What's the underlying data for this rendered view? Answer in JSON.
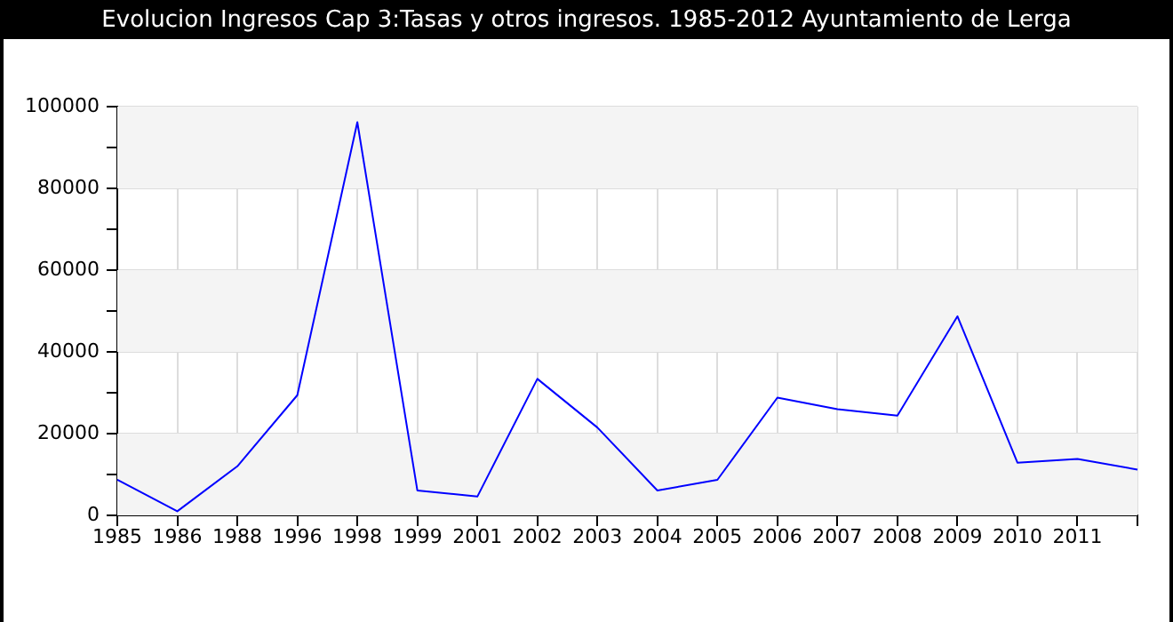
{
  "chart_data": {
    "type": "line",
    "title": "Evolucion Ingresos Cap 3:Tasas y otros ingresos. 1985-2012 Ayuntamiento de Lerga",
    "categories": [
      "1985",
      "1986",
      "1988",
      "1996",
      "1998",
      "1999",
      "2001",
      "2002",
      "2003",
      "2004",
      "2005",
      "2006",
      "2007",
      "2008",
      "2009",
      "2010",
      "2011",
      null
    ],
    "series": [
      {
        "color": "#0000ff",
        "values": [
          8700,
          1000,
          12000,
          29400,
          96200,
          6100,
          4600,
          33400,
          21500,
          6100,
          8700,
          28800,
          26000,
          24400,
          48700,
          12900,
          13800,
          11200
        ]
      }
    ],
    "ylim": [
      0,
      100000
    ],
    "yticks": [
      0,
      {
        "value": 10000,
        "label": null
      },
      20000,
      {
        "value": 30000,
        "label": null
      },
      40000,
      {
        "value": 50000,
        "label": null
      },
      60000,
      {
        "value": 70000,
        "label": null
      },
      80000,
      {
        "value": 90000,
        "label": null
      },
      100000
    ],
    "bands": [
      {
        "axis": "y",
        "from": 0,
        "to": 20000,
        "color": "#f4f4f4"
      },
      {
        "axis": "y",
        "from": 40000,
        "to": 60000,
        "color": "#f4f4f4"
      },
      {
        "axis": "y",
        "from": 80000,
        "to": 100000,
        "color": "#f4f4f4"
      }
    ],
    "grid": true,
    "legend": false,
    "marker": "none",
    "line_style": "solid"
  }
}
